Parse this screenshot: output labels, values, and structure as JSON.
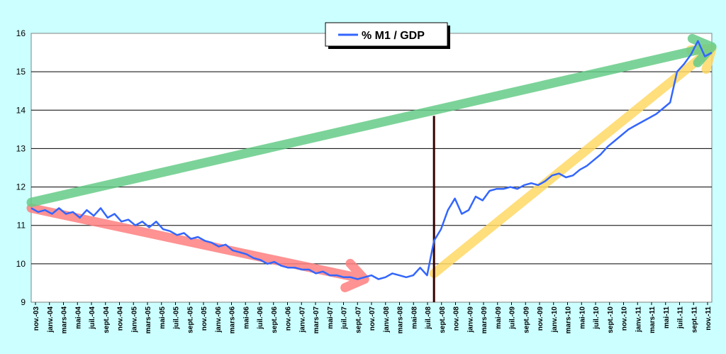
{
  "chart_data": {
    "type": "line",
    "title": "",
    "xlabel": "",
    "ylabel": "",
    "ylim": [
      9,
      16
    ],
    "yticks": [
      9,
      10,
      11,
      12,
      13,
      14,
      15,
      16
    ],
    "grid": true,
    "legend_position": "top-center",
    "colors": {
      "background": "#ccffff",
      "plot_area": "#ffffff",
      "series": "#3366ff",
      "gridline": "#000000",
      "arrow_decline": "#ff7f7f",
      "arrow_rise": "#ffd966",
      "arrow_overall": "#66cc88",
      "event_line": "#330000"
    },
    "x_ticks": [
      "nov.-03",
      "janv.-04",
      "mars-04",
      "mai-04",
      "juil.-04",
      "sept.-04",
      "nov.-04",
      "janv.-05",
      "mars-05",
      "mai-05",
      "juil.-05",
      "sept.-05",
      "nov.-05",
      "janv.-06",
      "mars-06",
      "mai-06",
      "juil.-06",
      "sept.-06",
      "nov.-06",
      "janv.-07",
      "mars-07",
      "mai-07",
      "juil.-07",
      "sept.-07",
      "nov.-07",
      "janv.-08",
      "mars-08",
      "mai-08",
      "juil.-08",
      "sept.-08",
      "nov.-08",
      "janv.-09",
      "mars-09",
      "mai-09",
      "juil.-09",
      "sept.-09",
      "nov.-09",
      "janv.-10",
      "mars-10",
      "mai-10",
      "juil.-10",
      "sept.-10",
      "nov.-10",
      "janv.-11",
      "mars-11",
      "mai-11",
      "juil.-11",
      "sept.-11",
      "nov.-11"
    ],
    "series": [
      {
        "name": "% M1 / GDP",
        "values": [
          11.45,
          11.35,
          11.4,
          11.3,
          11.45,
          11.3,
          11.35,
          11.2,
          11.4,
          11.25,
          11.45,
          11.2,
          11.3,
          11.1,
          11.15,
          11.0,
          11.1,
          10.95,
          11.1,
          10.9,
          10.85,
          10.75,
          10.8,
          10.65,
          10.7,
          10.6,
          10.55,
          10.45,
          10.5,
          10.35,
          10.3,
          10.25,
          10.15,
          10.1,
          10.0,
          10.05,
          9.95,
          9.9,
          9.9,
          9.85,
          9.85,
          9.75,
          9.8,
          9.7,
          9.7,
          9.65,
          9.65,
          9.6,
          9.65,
          9.7,
          9.6,
          9.65,
          9.75,
          9.7,
          9.65,
          9.7,
          9.9,
          9.7,
          10.6,
          10.9,
          11.4,
          11.7,
          11.3,
          11.4,
          11.75,
          11.65,
          11.9,
          11.95,
          11.95,
          12.0,
          11.95,
          12.05,
          12.1,
          12.05,
          12.15,
          12.3,
          12.35,
          12.25,
          12.3,
          12.45,
          12.55,
          12.7,
          12.85,
          13.05,
          13.2,
          13.35,
          13.5,
          13.6,
          13.7,
          13.8,
          13.9,
          14.05,
          14.2,
          15.0,
          15.2,
          15.45,
          15.8,
          15.4,
          15.5
        ]
      }
    ],
    "annotations": [
      {
        "type": "arrow",
        "color": "decline",
        "x": [
          0,
          48
        ],
        "y": [
          11.45,
          9.6
        ]
      },
      {
        "type": "arrow",
        "color": "rise",
        "x": [
          58,
          98
        ],
        "y": [
          9.75,
          15.6
        ]
      },
      {
        "type": "arrow",
        "color": "overall",
        "x": [
          0,
          98
        ],
        "y": [
          11.6,
          15.65
        ]
      },
      {
        "type": "vline",
        "color": "event",
        "x": 58,
        "y": [
          9,
          13.85
        ]
      }
    ]
  }
}
